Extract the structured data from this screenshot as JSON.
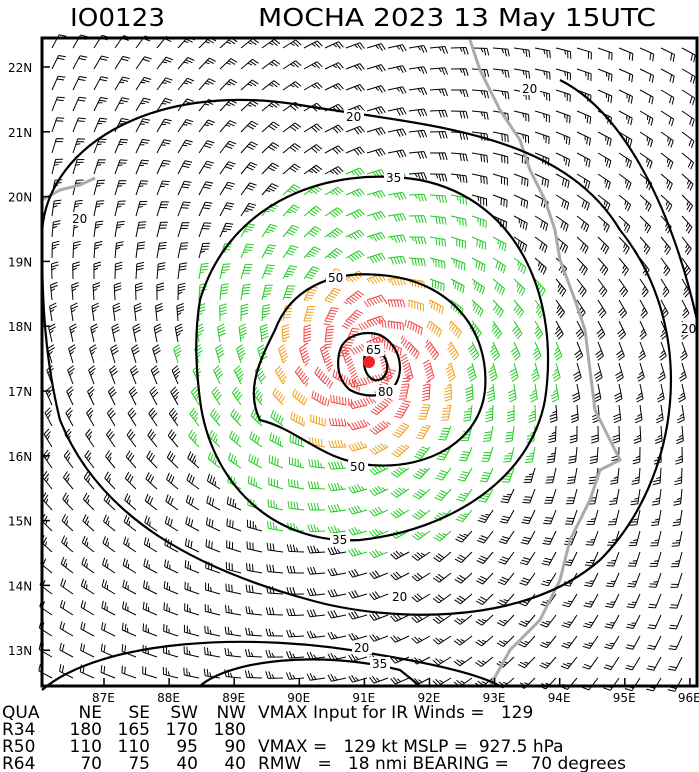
{
  "header": {
    "id": "IO0123",
    "title": "MOCHA 2023 13 May 15UTC"
  },
  "lat_ticks": [
    "22N",
    "21N",
    "20N",
    "19N",
    "18N",
    "17N",
    "16N",
    "15N",
    "14N",
    "13N"
  ],
  "lon_ticks": [
    "87E",
    "88E",
    "89E",
    "90E",
    "91E",
    "92E",
    "93E",
    "94E",
    "95E",
    "96E"
  ],
  "contour_labels": [
    "20",
    "20",
    "20",
    "20",
    "20",
    "20",
    "35",
    "35",
    "35",
    "50",
    "50",
    "65",
    "80"
  ],
  "barb_colors": {
    "below_34": "#000000",
    "34_50": "#22cc22",
    "50_64": "#f0a020",
    "above_64": "#f04848"
  },
  "center_marker_color": "#ee2222",
  "coastline_color": "#aaaaaa",
  "table": {
    "headers": [
      "QUA",
      "NE",
      "SE",
      "SW",
      "NW"
    ],
    "rows": [
      [
        "R34",
        "180",
        "165",
        "170",
        "180"
      ],
      [
        "R50",
        "110",
        "110",
        "95",
        "90"
      ],
      [
        "R64",
        "70",
        "75",
        "40",
        "40"
      ]
    ],
    "vmax_input": "VMAX Input for IR Winds =   129",
    "vmax_mslp": "VMAX =   129 kt MSLP =  927.5 hPa",
    "rmw_bearing": "RMW   =   18 nmi BEARING =    70 degrees"
  }
}
